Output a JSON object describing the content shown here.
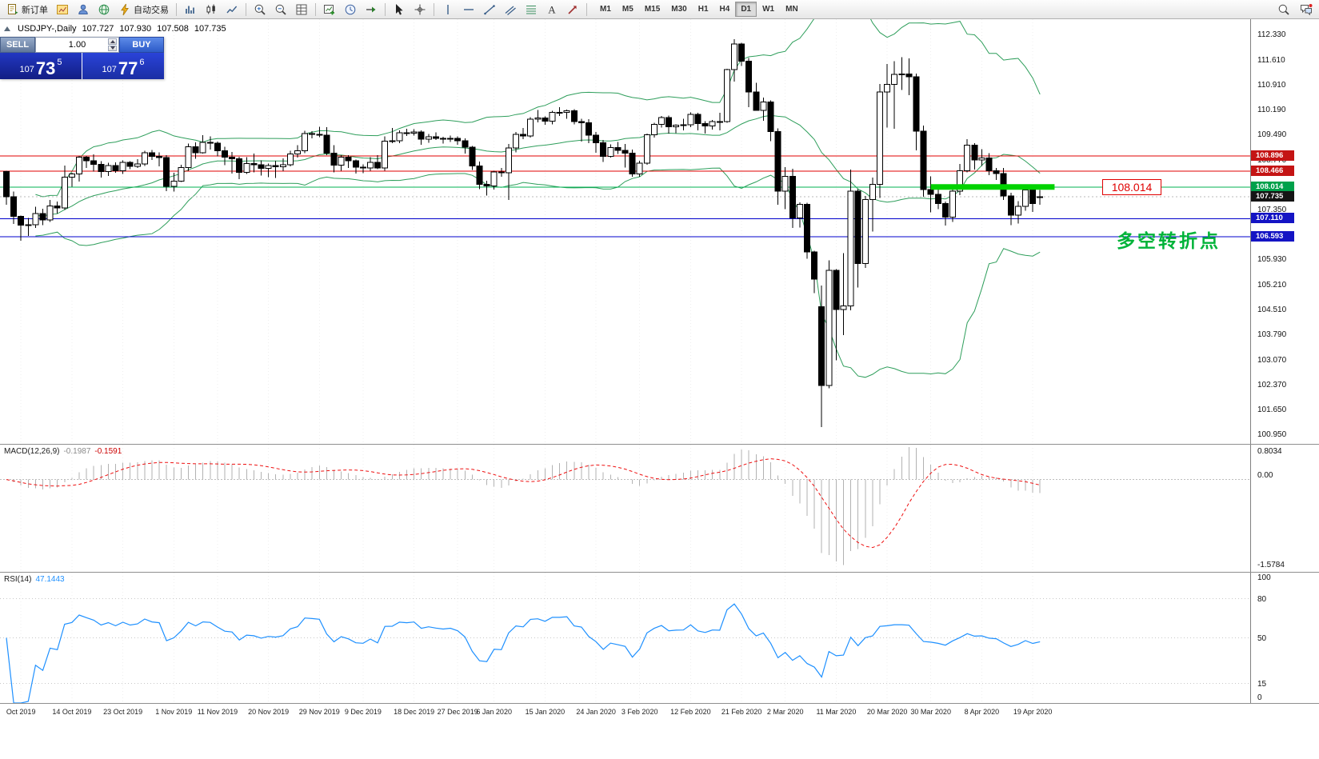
{
  "toolbar": {
    "buttons": [
      {
        "name": "new-order",
        "icon": "new-order",
        "label": "新订单"
      },
      {
        "name": "charts",
        "icon": "charts"
      },
      {
        "name": "profiles",
        "icon": "person"
      },
      {
        "name": "market",
        "icon": "globe"
      },
      {
        "name": "autotrading",
        "icon": "lightning",
        "label": "自动交易"
      },
      {
        "sep": true
      },
      {
        "name": "bar-chart",
        "icon": "bars"
      },
      {
        "name": "candlestick-chart",
        "icon": "candles"
      },
      {
        "name": "line-chart",
        "icon": "linechart"
      },
      {
        "sep": true
      },
      {
        "name": "zoom-in",
        "icon": "zoom-in"
      },
      {
        "name": "zoom-out",
        "icon": "zoom-out"
      },
      {
        "name": "tile-windows",
        "icon": "grid"
      },
      {
        "sep": true
      },
      {
        "name": "new-chart",
        "icon": "new-chart"
      },
      {
        "name": "period-settings",
        "icon": "clock"
      },
      {
        "name": "chart-shift",
        "icon": "shift"
      },
      {
        "sep": true
      },
      {
        "name": "cursor",
        "icon": "cursor"
      },
      {
        "name": "crosshair",
        "icon": "crosshair"
      },
      {
        "sep": true
      },
      {
        "name": "vertical-line",
        "icon": "vline"
      },
      {
        "name": "horizontal-line",
        "icon": "hline"
      },
      {
        "name": "trendline",
        "ic on": "trend",
        "icon": "trend"
      },
      {
        "name": "equidistant-channel",
        "icon": "channel"
      },
      {
        "name": "fibonacci",
        "icon": "fibo"
      },
      {
        "name": "text-label",
        "icon": "text"
      },
      {
        "name": "arrow-objects",
        "icon": "arrow"
      },
      {
        "sep": true
      }
    ],
    "timeframes": [
      "M1",
      "M5",
      "M15",
      "M30",
      "H1",
      "H4",
      "D1",
      "W1",
      "MN"
    ],
    "active_timeframe": "D1",
    "right_buttons": [
      {
        "name": "search",
        "icon": "search"
      },
      {
        "name": "chat",
        "icon": "chat"
      }
    ]
  },
  "title_row": {
    "symbol": "USDJPY-,Daily",
    "open": "107.727",
    "high": "107.930",
    "low": "107.508",
    "close": "107.735"
  },
  "trade_panel": {
    "sell_label": "SELL",
    "buy_label": "BUY",
    "volume": "1.00",
    "bid": {
      "prefix": "107",
      "big": "73",
      "sup": "5"
    },
    "ask": {
      "prefix": "107",
      "big": "77",
      "sup": "6"
    }
  },
  "chart_data": {
    "type": "candlestick",
    "symbol": "USDJPY-,Daily",
    "ohlc": [
      [
        108.45,
        108.47,
        107.51,
        107.74
      ],
      [
        107.74,
        107.88,
        106.96,
        107.18
      ],
      [
        107.18,
        107.2,
        106.48,
        106.93
      ],
      [
        106.93,
        107.13,
        106.62,
        106.94
      ],
      [
        106.94,
        107.45,
        106.85,
        107.26
      ],
      [
        107.26,
        107.39,
        106.93,
        107.08
      ],
      [
        107.08,
        107.64,
        107.02,
        107.47
      ],
      [
        107.47,
        107.6,
        107.26,
        107.42
      ],
      [
        107.42,
        108.62,
        107.36,
        108.29
      ],
      [
        108.29,
        108.42,
        108.02,
        108.38
      ],
      [
        108.38,
        108.9,
        108.17,
        108.86
      ],
      [
        108.86,
        108.9,
        108.55,
        108.76
      ],
      [
        108.76,
        108.94,
        108.45,
        108.66
      ],
      [
        108.66,
        108.75,
        108.28,
        108.45
      ],
      [
        108.45,
        108.7,
        108.33,
        108.62
      ],
      [
        108.62,
        108.72,
        108.42,
        108.48
      ],
      [
        108.48,
        108.77,
        108.38,
        108.72
      ],
      [
        108.72,
        108.75,
        108.52,
        108.6
      ],
      [
        108.6,
        108.8,
        108.55,
        108.67
      ],
      [
        108.67,
        109.05,
        108.61,
        108.99
      ],
      [
        108.99,
        109.07,
        108.78,
        108.88
      ],
      [
        108.88,
        109.0,
        108.6,
        108.85
      ],
      [
        108.85,
        108.92,
        107.89,
        108.03
      ],
      [
        108.03,
        108.42,
        107.88,
        108.18
      ],
      [
        108.18,
        108.65,
        108.16,
        108.57
      ],
      [
        108.57,
        109.25,
        108.47,
        109.16
      ],
      [
        109.16,
        109.28,
        108.82,
        108.99
      ],
      [
        108.99,
        109.49,
        108.96,
        109.28
      ],
      [
        109.28,
        109.45,
        109.08,
        109.26
      ],
      [
        109.26,
        109.31,
        108.89,
        109.05
      ],
      [
        109.05,
        109.16,
        108.64,
        108.86
      ],
      [
        108.86,
        109.01,
        108.4,
        108.82
      ],
      [
        108.82,
        108.87,
        108.24,
        108.43
      ],
      [
        108.43,
        108.86,
        108.38,
        108.68
      ],
      [
        108.68,
        108.97,
        108.43,
        108.65
      ],
      [
        108.65,
        108.77,
        108.34,
        108.54
      ],
      [
        108.54,
        108.68,
        108.29,
        108.62
      ],
      [
        108.62,
        108.76,
        108.27,
        108.59
      ],
      [
        108.59,
        108.83,
        108.46,
        108.65
      ],
      [
        108.65,
        109.05,
        108.6,
        108.95
      ],
      [
        108.95,
        109.2,
        108.85,
        109.05
      ],
      [
        109.05,
        109.61,
        108.98,
        109.53
      ],
      [
        109.53,
        109.6,
        109.4,
        109.51
      ],
      [
        109.51,
        109.73,
        109.43,
        109.49
      ],
      [
        109.49,
        109.72,
        108.92,
        108.98
      ],
      [
        108.98,
        109.2,
        108.43,
        108.63
      ],
      [
        108.63,
        108.92,
        108.48,
        108.86
      ],
      [
        108.86,
        108.92,
        108.56,
        108.76
      ],
      [
        108.76,
        108.79,
        108.4,
        108.58
      ],
      [
        108.58,
        108.66,
        108.41,
        108.56
      ],
      [
        108.56,
        108.86,
        108.47,
        108.72
      ],
      [
        108.72,
        108.92,
        108.52,
        108.56
      ],
      [
        108.56,
        109.45,
        108.48,
        109.32
      ],
      [
        109.32,
        109.69,
        109.26,
        109.33
      ],
      [
        109.33,
        109.63,
        109.26,
        109.56
      ],
      [
        109.56,
        109.67,
        109.47,
        109.54
      ],
      [
        109.54,
        109.66,
        109.48,
        109.58
      ],
      [
        109.58,
        109.63,
        109.21,
        109.37
      ],
      [
        109.37,
        109.52,
        109.27,
        109.44
      ],
      [
        109.44,
        109.57,
        109.35,
        109.4
      ],
      [
        109.4,
        109.44,
        109.25,
        109.37
      ],
      [
        109.37,
        109.48,
        109.3,
        109.4
      ],
      [
        109.4,
        109.45,
        109.22,
        109.33
      ],
      [
        109.33,
        109.4,
        108.97,
        109.15
      ],
      [
        109.15,
        109.18,
        108.5,
        108.61
      ],
      [
        108.61,
        108.74,
        107.95,
        108.09
      ],
      [
        108.09,
        108.19,
        107.77,
        108.04
      ],
      [
        108.04,
        108.47,
        107.94,
        108.44
      ],
      [
        108.44,
        108.55,
        108.3,
        108.42
      ],
      [
        108.42,
        109.24,
        107.65,
        109.12
      ],
      [
        109.12,
        109.58,
        109.0,
        109.51
      ],
      [
        109.51,
        109.69,
        109.38,
        109.47
      ],
      [
        109.47,
        110.0,
        109.42,
        109.94
      ],
      [
        109.94,
        110.21,
        109.85,
        109.98
      ],
      [
        109.98,
        110.02,
        109.78,
        109.89
      ],
      [
        109.89,
        110.18,
        109.8,
        110.14
      ],
      [
        110.14,
        110.29,
        110.04,
        110.14
      ],
      [
        110.14,
        110.22,
        109.95,
        110.18
      ],
      [
        110.18,
        110.23,
        109.8,
        109.88
      ],
      [
        109.88,
        109.96,
        109.31,
        109.84
      ],
      [
        109.84,
        109.94,
        109.26,
        109.49
      ],
      [
        109.49,
        109.58,
        108.99,
        109.27
      ],
      [
        109.27,
        109.35,
        108.73,
        108.89
      ],
      [
        108.89,
        109.23,
        108.85,
        109.14
      ],
      [
        109.14,
        109.29,
        108.95,
        109.06
      ],
      [
        109.06,
        109.24,
        108.57,
        108.98
      ],
      [
        108.98,
        109.08,
        108.31,
        108.38
      ],
      [
        108.38,
        108.76,
        108.3,
        108.69
      ],
      [
        108.69,
        109.53,
        108.65,
        109.5
      ],
      [
        109.5,
        109.84,
        109.42,
        109.8
      ],
      [
        109.8,
        110.03,
        109.71,
        109.99
      ],
      [
        109.99,
        110.05,
        109.53,
        109.73
      ],
      [
        109.73,
        109.8,
        109.55,
        109.77
      ],
      [
        109.77,
        109.95,
        109.62,
        109.78
      ],
      [
        109.78,
        110.14,
        109.72,
        110.08
      ],
      [
        110.08,
        110.13,
        109.62,
        109.82
      ],
      [
        109.82,
        109.89,
        109.53,
        109.75
      ],
      [
        109.75,
        109.92,
        109.65,
        109.88
      ],
      [
        109.88,
        110.13,
        109.63,
        109.87
      ],
      [
        109.87,
        111.38,
        109.84,
        111.35
      ],
      [
        111.35,
        112.22,
        111.01,
        112.08
      ],
      [
        112.08,
        112.12,
        111.46,
        111.59
      ],
      [
        111.59,
        111.69,
        110.28,
        110.72
      ],
      [
        110.72,
        110.98,
        110.18,
        110.2
      ],
      [
        110.2,
        110.56,
        109.9,
        110.43
      ],
      [
        110.43,
        110.48,
        109.32,
        109.59
      ],
      [
        109.59,
        109.68,
        107.51,
        107.89
      ],
      [
        107.89,
        108.58,
        107.38,
        108.32
      ],
      [
        108.32,
        108.53,
        106.85,
        107.13
      ],
      [
        107.13,
        107.58,
        106.86,
        107.52
      ],
      [
        107.52,
        107.56,
        105.97,
        106.16
      ],
      [
        106.16,
        106.2,
        104.99,
        105.39
      ],
      [
        104.6,
        105.21,
        101.18,
        102.36
      ],
      [
        102.36,
        105.92,
        102.28,
        105.64
      ],
      [
        105.64,
        105.68,
        103.08,
        104.53
      ],
      [
        104.53,
        106.13,
        103.8,
        104.63
      ],
      [
        104.63,
        108.51,
        104.5,
        107.9
      ],
      [
        107.9,
        107.95,
        105.15,
        105.83
      ],
      [
        105.83,
        107.76,
        105.71,
        107.66
      ],
      [
        107.66,
        108.28,
        106.75,
        108.09
      ],
      [
        108.09,
        110.95,
        107.7,
        110.72
      ],
      [
        110.72,
        111.51,
        109.7,
        110.93
      ],
      [
        110.93,
        111.59,
        109.67,
        111.22
      ],
      [
        111.22,
        111.71,
        110.78,
        111.23
      ],
      [
        111.23,
        111.68,
        110.63,
        111.15
      ],
      [
        111.15,
        111.24,
        109.06,
        109.6
      ],
      [
        109.6,
        109.76,
        107.74,
        107.94
      ],
      [
        107.94,
        108.32,
        107.29,
        107.8
      ],
      [
        107.8,
        107.96,
        107.38,
        107.54
      ],
      [
        107.54,
        107.6,
        106.92,
        107.16
      ],
      [
        107.16,
        108.05,
        107.02,
        107.89
      ],
      [
        107.89,
        108.67,
        107.78,
        108.47
      ],
      [
        108.47,
        109.38,
        108.43,
        109.2
      ],
      [
        109.2,
        109.26,
        108.51,
        108.78
      ],
      [
        108.78,
        109.09,
        108.61,
        108.84
      ],
      [
        108.84,
        108.98,
        108.35,
        108.48
      ],
      [
        108.48,
        108.55,
        108.21,
        108.4
      ],
      [
        108.4,
        108.56,
        107.64,
        107.76
      ],
      [
        107.76,
        107.85,
        106.93,
        107.21
      ],
      [
        107.21,
        107.61,
        106.97,
        107.46
      ],
      [
        107.46,
        108.08,
        107.34,
        107.93
      ],
      [
        107.93,
        107.98,
        107.3,
        107.54
      ],
      [
        107.727,
        107.93,
        107.508,
        107.735
      ]
    ],
    "x_ticks": [
      {
        "i": 2,
        "label": "Oct 2019"
      },
      {
        "i": 9,
        "label": "14 Oct 2019"
      },
      {
        "i": 16,
        "label": "23 Oct 2019"
      },
      {
        "i": 23,
        "label": "1 Nov 2019"
      },
      {
        "i": 29,
        "label": "11 Nov 2019"
      },
      {
        "i": 36,
        "label": "20 Nov 2019"
      },
      {
        "i": 43,
        "label": "29 Nov 2019"
      },
      {
        "i": 49,
        "label": "9 Dec 2019"
      },
      {
        "i": 56,
        "label": "18 Dec 2019"
      },
      {
        "i": 62,
        "label": "27 Dec 2019"
      },
      {
        "i": 67,
        "label": "6 Jan 2020"
      },
      {
        "i": 74,
        "label": "15 Jan 2020"
      },
      {
        "i": 81,
        "label": "24 Jan 2020"
      },
      {
        "i": 87,
        "label": "3 Feb 2020"
      },
      {
        "i": 94,
        "label": "12 Feb 2020"
      },
      {
        "i": 101,
        "label": "21 Feb 2020"
      },
      {
        "i": 107,
        "label": "2 Mar 2020"
      },
      {
        "i": 114,
        "label": "11 Mar 2020"
      },
      {
        "i": 121,
        "label": "20 Mar 2020"
      },
      {
        "i": 127,
        "label": "30 Mar 2020"
      },
      {
        "i": 134,
        "label": "8 Apr 2020"
      },
      {
        "i": 141,
        "label": "19 Apr 2020"
      }
    ],
    "y_axis": {
      "top_price": 112.79,
      "bottom_price": 100.7,
      "labels": [
        112.33,
        111.61,
        110.91,
        110.19,
        109.49,
        108.77,
        107.35,
        105.93,
        105.21,
        104.51,
        103.79,
        103.07,
        102.37,
        101.65,
        100.95
      ]
    },
    "price_tags": [
      {
        "price": 108.896,
        "bg": "#c41414"
      },
      {
        "price": 108.466,
        "bg": "#c41414"
      },
      {
        "price": 108.014,
        "bg": "#00a14b"
      },
      {
        "price": 107.735,
        "bg": "#151515"
      },
      {
        "price": 107.11,
        "bg": "#1414c4"
      },
      {
        "price": 106.593,
        "bg": "#1414c4"
      }
    ],
    "hlines": [
      {
        "price": 108.896,
        "color": "#e00000"
      },
      {
        "price": 108.466,
        "color": "#e00000"
      },
      {
        "price": 108.014,
        "color": "#00b050"
      },
      {
        "price": 107.735,
        "color": "#b8b8b8",
        "dash": "2,3"
      },
      {
        "price": 107.11,
        "color": "#0000cc"
      },
      {
        "price": 106.593,
        "color": "#0000cc"
      }
    ],
    "highlight_bar": {
      "price": 108.014,
      "from_i": 127,
      "to_i": 144,
      "color": "#00d300"
    },
    "bollinger": {
      "period": 20,
      "deviation": 2,
      "color": "#2e9e5b"
    },
    "candle_colors": {
      "up_fill": "#ffffff",
      "down_fill": "#000000",
      "stroke": "#000000"
    },
    "indicators": {
      "macd": {
        "label": "MACD(12,26,9)",
        "value_main": "-0.1987",
        "value_signal": "-0.1591",
        "fast": 12,
        "slow": 26,
        "signal": 9,
        "axis_labels": [
          "0.8034",
          "0.00",
          "-1.5784"
        ],
        "histogram_color": "#b2b2b2",
        "signal_color": "#ee1111"
      },
      "rsi": {
        "label": "RSI(14)",
        "value": "47.1443",
        "period": 14,
        "axis_labels": [
          100,
          80,
          50,
          15,
          0
        ],
        "levels": [
          80,
          50,
          15
        ],
        "color": "#1e90ff"
      }
    },
    "annotations": {
      "price_label": "108.014",
      "box_price": 108.014,
      "note_text": "多空转折点",
      "note_color": "#00b339",
      "note_price": 106.62
    }
  }
}
